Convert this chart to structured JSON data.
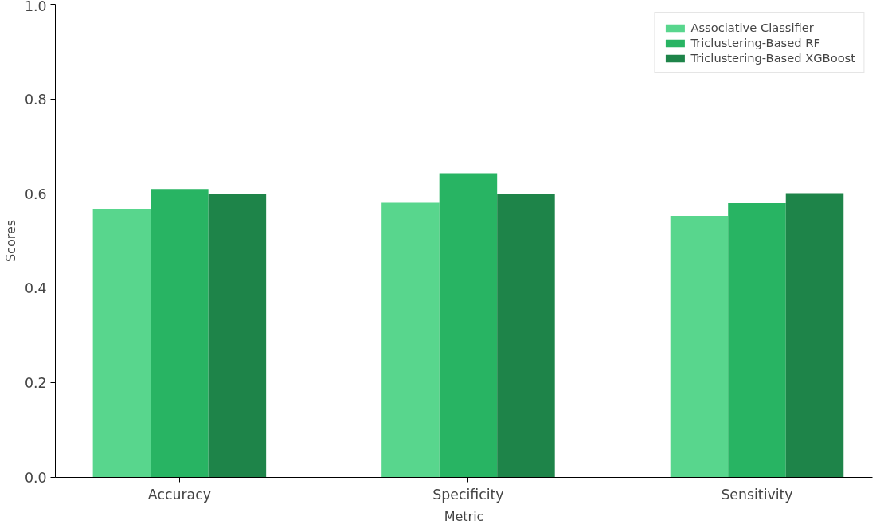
{
  "chart_data": {
    "type": "bar",
    "xlabel": "Metric",
    "ylabel": "Scores",
    "categories": [
      "Accuracy",
      "Specificity",
      "Sensitivity"
    ],
    "series": [
      {
        "name": "Associative Classifier",
        "color": "#58d68d",
        "values": [
          0.568,
          0.581,
          0.553
        ]
      },
      {
        "name": "Triclustering-Based RF",
        "color": "#28b463",
        "values": [
          0.61,
          0.643,
          0.58
        ]
      },
      {
        "name": "Triclustering-Based XGBoost",
        "color": "#1e8449",
        "values": [
          0.6,
          0.6,
          0.601
        ]
      }
    ],
    "ylim": [
      0,
      1
    ],
    "yticks": [
      {
        "value": 0,
        "label": "0.0"
      },
      {
        "value": 0.2,
        "label": "0.2"
      },
      {
        "value": 0.4,
        "label": "0.4"
      },
      {
        "value": 0.6,
        "label": "0.6"
      },
      {
        "value": 0.8,
        "label": "0.8"
      },
      {
        "value": 1,
        "label": "1.0"
      }
    ],
    "grid": false,
    "legend": "top right"
  }
}
